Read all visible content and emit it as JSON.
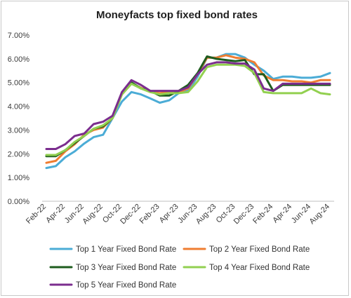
{
  "chart_data": {
    "type": "line",
    "title": "Moneyfacts top fixed bond rates",
    "xlabel": "",
    "ylabel": "",
    "ylim": [
      0,
      7
    ],
    "y_ticks": [
      "0.00%",
      "1.00%",
      "2.00%",
      "3.00%",
      "4.00%",
      "5.00%",
      "6.00%",
      "7.00%"
    ],
    "x": [
      "Feb-22",
      "Mar-22",
      "Apr-22",
      "May-22",
      "Jun-22",
      "Jul-22",
      "Aug-22",
      "Sep-22",
      "Oct-22",
      "Nov-22",
      "Dec-22",
      "Jan-23",
      "Feb-23",
      "Mar-23",
      "Apr-23",
      "May-23",
      "Jun-23",
      "Jul-23",
      "Aug-23",
      "Sep-23",
      "Oct-23",
      "Nov-23",
      "Dec-23",
      "Jan-24",
      "Feb-24",
      "Mar-24",
      "Apr-24",
      "May-24",
      "Jun-24",
      "Jul-24",
      "Aug-24"
    ],
    "x_tick_labels": [
      "Feb-22",
      "Apr-22",
      "Jun-22",
      "Aug-22",
      "Oct-22",
      "Dec-22",
      "Feb-23",
      "Apr-23",
      "Jun-23",
      "Aug-23",
      "Oct-23",
      "Dec-23",
      "Feb-24",
      "Apr-24",
      "Jun-24",
      "Aug-24"
    ],
    "grid": false,
    "legend_position": "bottom",
    "series": [
      {
        "name": "Top 1 Year Fixed Bond Rate",
        "color": "#4bacd6",
        "values": [
          1.4,
          1.48,
          1.85,
          2.1,
          2.43,
          2.7,
          2.8,
          3.5,
          4.2,
          4.6,
          4.5,
          4.33,
          4.15,
          4.25,
          4.55,
          4.65,
          5.25,
          6.05,
          6.05,
          6.2,
          6.2,
          6.05,
          5.75,
          5.5,
          5.15,
          5.25,
          5.25,
          5.2,
          5.2,
          5.25,
          5.4
        ]
      },
      {
        "name": "Top 2 Year Fixed Bond Rate",
        "color": "#ef7d31",
        "values": [
          1.62,
          1.7,
          2.1,
          2.4,
          2.8,
          3.0,
          3.1,
          3.5,
          4.5,
          4.95,
          4.78,
          4.6,
          4.55,
          4.6,
          4.6,
          4.75,
          5.35,
          6.05,
          6.05,
          6.15,
          6.05,
          6.0,
          5.85,
          5.3,
          5.1,
          5.1,
          5.05,
          5.05,
          5.0,
          5.1,
          5.1
        ]
      },
      {
        "name": "Top 3 Year Fixed Bond Rate",
        "color": "#1e5c1e",
        "values": [
          1.9,
          1.9,
          2.15,
          2.45,
          2.75,
          3.05,
          3.15,
          3.5,
          4.55,
          5.0,
          4.75,
          4.65,
          4.45,
          4.45,
          4.65,
          4.9,
          5.4,
          6.1,
          6.0,
          5.95,
          5.9,
          5.95,
          5.35,
          5.35,
          4.65,
          4.9,
          4.9,
          4.9,
          4.9,
          4.9,
          4.9
        ]
      },
      {
        "name": "Top 4 Year Fixed Bond Rate",
        "color": "#92d050",
        "values": [
          1.95,
          1.95,
          2.15,
          2.5,
          2.75,
          3.05,
          3.2,
          3.5,
          4.5,
          4.95,
          4.75,
          4.6,
          4.5,
          4.55,
          4.55,
          4.6,
          5.05,
          5.65,
          5.75,
          5.75,
          5.75,
          5.7,
          5.4,
          4.6,
          4.55,
          4.55,
          4.55,
          4.55,
          4.75,
          4.55,
          4.5
        ]
      },
      {
        "name": "Top 5 Year Fixed Bond Rate",
        "color": "#7b2d8e",
        "values": [
          2.2,
          2.2,
          2.4,
          2.75,
          2.85,
          3.25,
          3.35,
          3.6,
          4.6,
          5.1,
          4.9,
          4.65,
          4.65,
          4.65,
          4.65,
          4.8,
          5.35,
          5.75,
          5.85,
          5.85,
          5.8,
          5.8,
          5.55,
          4.75,
          4.65,
          4.95,
          4.95,
          4.95,
          4.95,
          4.95,
          4.95
        ]
      }
    ]
  }
}
